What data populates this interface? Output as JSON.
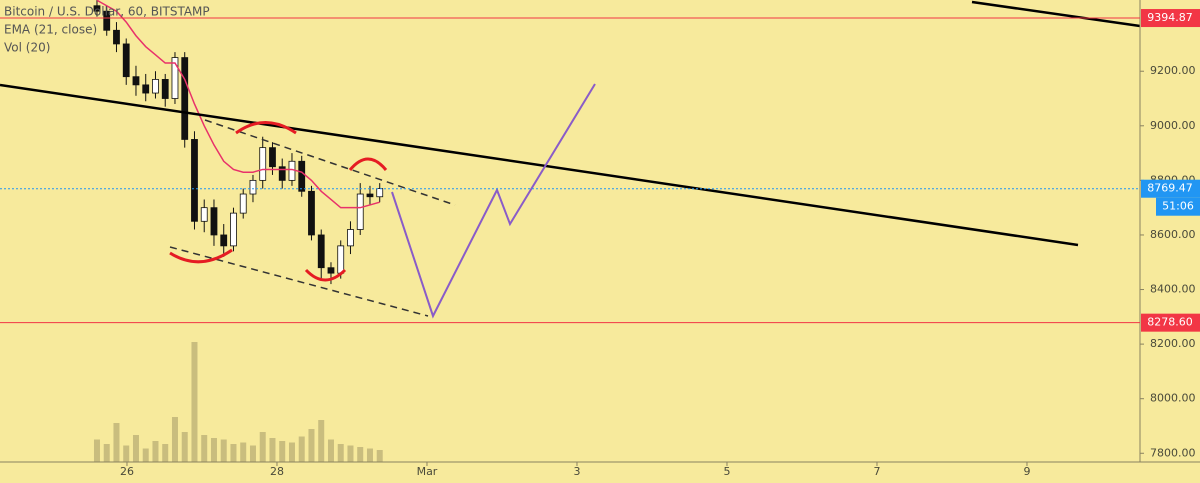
{
  "chart_data": {
    "type": "candlestick",
    "title": "Bitcoin / U.S. Dollar, 60, BITSTAMP",
    "xlim": [
      24.307,
      39.507
    ],
    "xticks": [
      26,
      28,
      {
        "value": 30,
        "label": "Mar"
      },
      {
        "value": 32,
        "label": "3"
      },
      {
        "value": 34,
        "label": "5"
      },
      {
        "value": 36,
        "label": "7"
      },
      {
        "value": 38,
        "label": "9"
      }
    ],
    "ylim": [
      7768,
      9461
    ],
    "yticks": [
      {
        "value": 7800,
        "label": "7800.00"
      },
      {
        "value": 8000,
        "label": "8000.00"
      },
      {
        "value": 8200,
        "label": "8200.00"
      },
      {
        "value": 8400,
        "label": "8400.00"
      },
      {
        "value": 8600,
        "label": "8600.00"
      },
      {
        "value": 8800,
        "label": "8800.00"
      },
      {
        "value": 9000,
        "label": "9000.00"
      },
      {
        "value": 9200,
        "label": "9200.00"
      }
    ],
    "candles": {
      "up_color": "#ffffff",
      "down_color": "#111111",
      "x": [
        25.6,
        25.73,
        25.86,
        25.99,
        26.12,
        26.25,
        26.38,
        26.51,
        26.64,
        26.77,
        26.9,
        27.03,
        27.16,
        27.29,
        27.42,
        27.55,
        27.68,
        27.81,
        27.94,
        28.07,
        28.2,
        28.33,
        28.46,
        28.59,
        28.72,
        28.85,
        28.98,
        29.11,
        29.24,
        29.37
      ],
      "open": [
        9440,
        9420,
        9350,
        9300,
        9180,
        9150,
        9120,
        9170,
        9100,
        9250,
        8950,
        8650,
        8700,
        8600,
        8560,
        8680,
        8750,
        8800,
        8920,
        8850,
        8800,
        8870,
        8760,
        8600,
        8480,
        8460,
        8560,
        8620,
        8750,
        8740
      ],
      "high": [
        9470,
        9440,
        9380,
        9320,
        9220,
        9190,
        9200,
        9190,
        9270,
        9270,
        8980,
        8730,
        8730,
        8640,
        8700,
        8770,
        8820,
        8960,
        8940,
        8880,
        8900,
        8890,
        8780,
        8620,
        8500,
        8580,
        8650,
        8790,
        8780,
        8790
      ],
      "low": [
        9400,
        9330,
        9270,
        9150,
        9110,
        9090,
        9100,
        9070,
        9080,
        8920,
        8620,
        8610,
        8560,
        8520,
        8540,
        8660,
        8720,
        8770,
        8820,
        8770,
        8780,
        8740,
        8580,
        8440,
        8420,
        8440,
        8530,
        8600,
        8710,
        8720
      ],
      "close": [
        9420,
        9350,
        9300,
        9180,
        9150,
        9120,
        9170,
        9100,
        9250,
        8950,
        8650,
        8700,
        8600,
        8560,
        8680,
        8750,
        8800,
        8920,
        8850,
        8800,
        8870,
        8760,
        8600,
        8480,
        8460,
        8560,
        8620,
        8750,
        8740,
        8770
      ]
    },
    "ema": {
      "name": "EMA (21, close)",
      "color": "#e8326a",
      "values": [
        9460,
        9440,
        9420,
        9380,
        9330,
        9290,
        9260,
        9230,
        9230,
        9170,
        9080,
        9000,
        8930,
        8870,
        8840,
        8830,
        8830,
        8840,
        8840,
        8840,
        8840,
        8830,
        8800,
        8760,
        8730,
        8700,
        8700,
        8700,
        8710,
        8720
      ]
    },
    "volume": {
      "name": "Vol (20)",
      "color": "#c9bd7e",
      "ylim": [
        0,
        2000
      ],
      "values": [
        150,
        120,
        260,
        110,
        180,
        90,
        140,
        120,
        300,
        200,
        800,
        180,
        160,
        150,
        120,
        130,
        110,
        200,
        160,
        140,
        130,
        170,
        220,
        280,
        150,
        120,
        110,
        100,
        90,
        80
      ]
    },
    "levels": [
      {
        "value": 9394.87,
        "color": "#f23645"
      },
      {
        "value": 8769.47,
        "color": "#2196f3",
        "countdown": "51:06"
      },
      {
        "value": 8278.6,
        "label": "8278.60",
        "color": "#f23645"
      }
    ]
  }
}
